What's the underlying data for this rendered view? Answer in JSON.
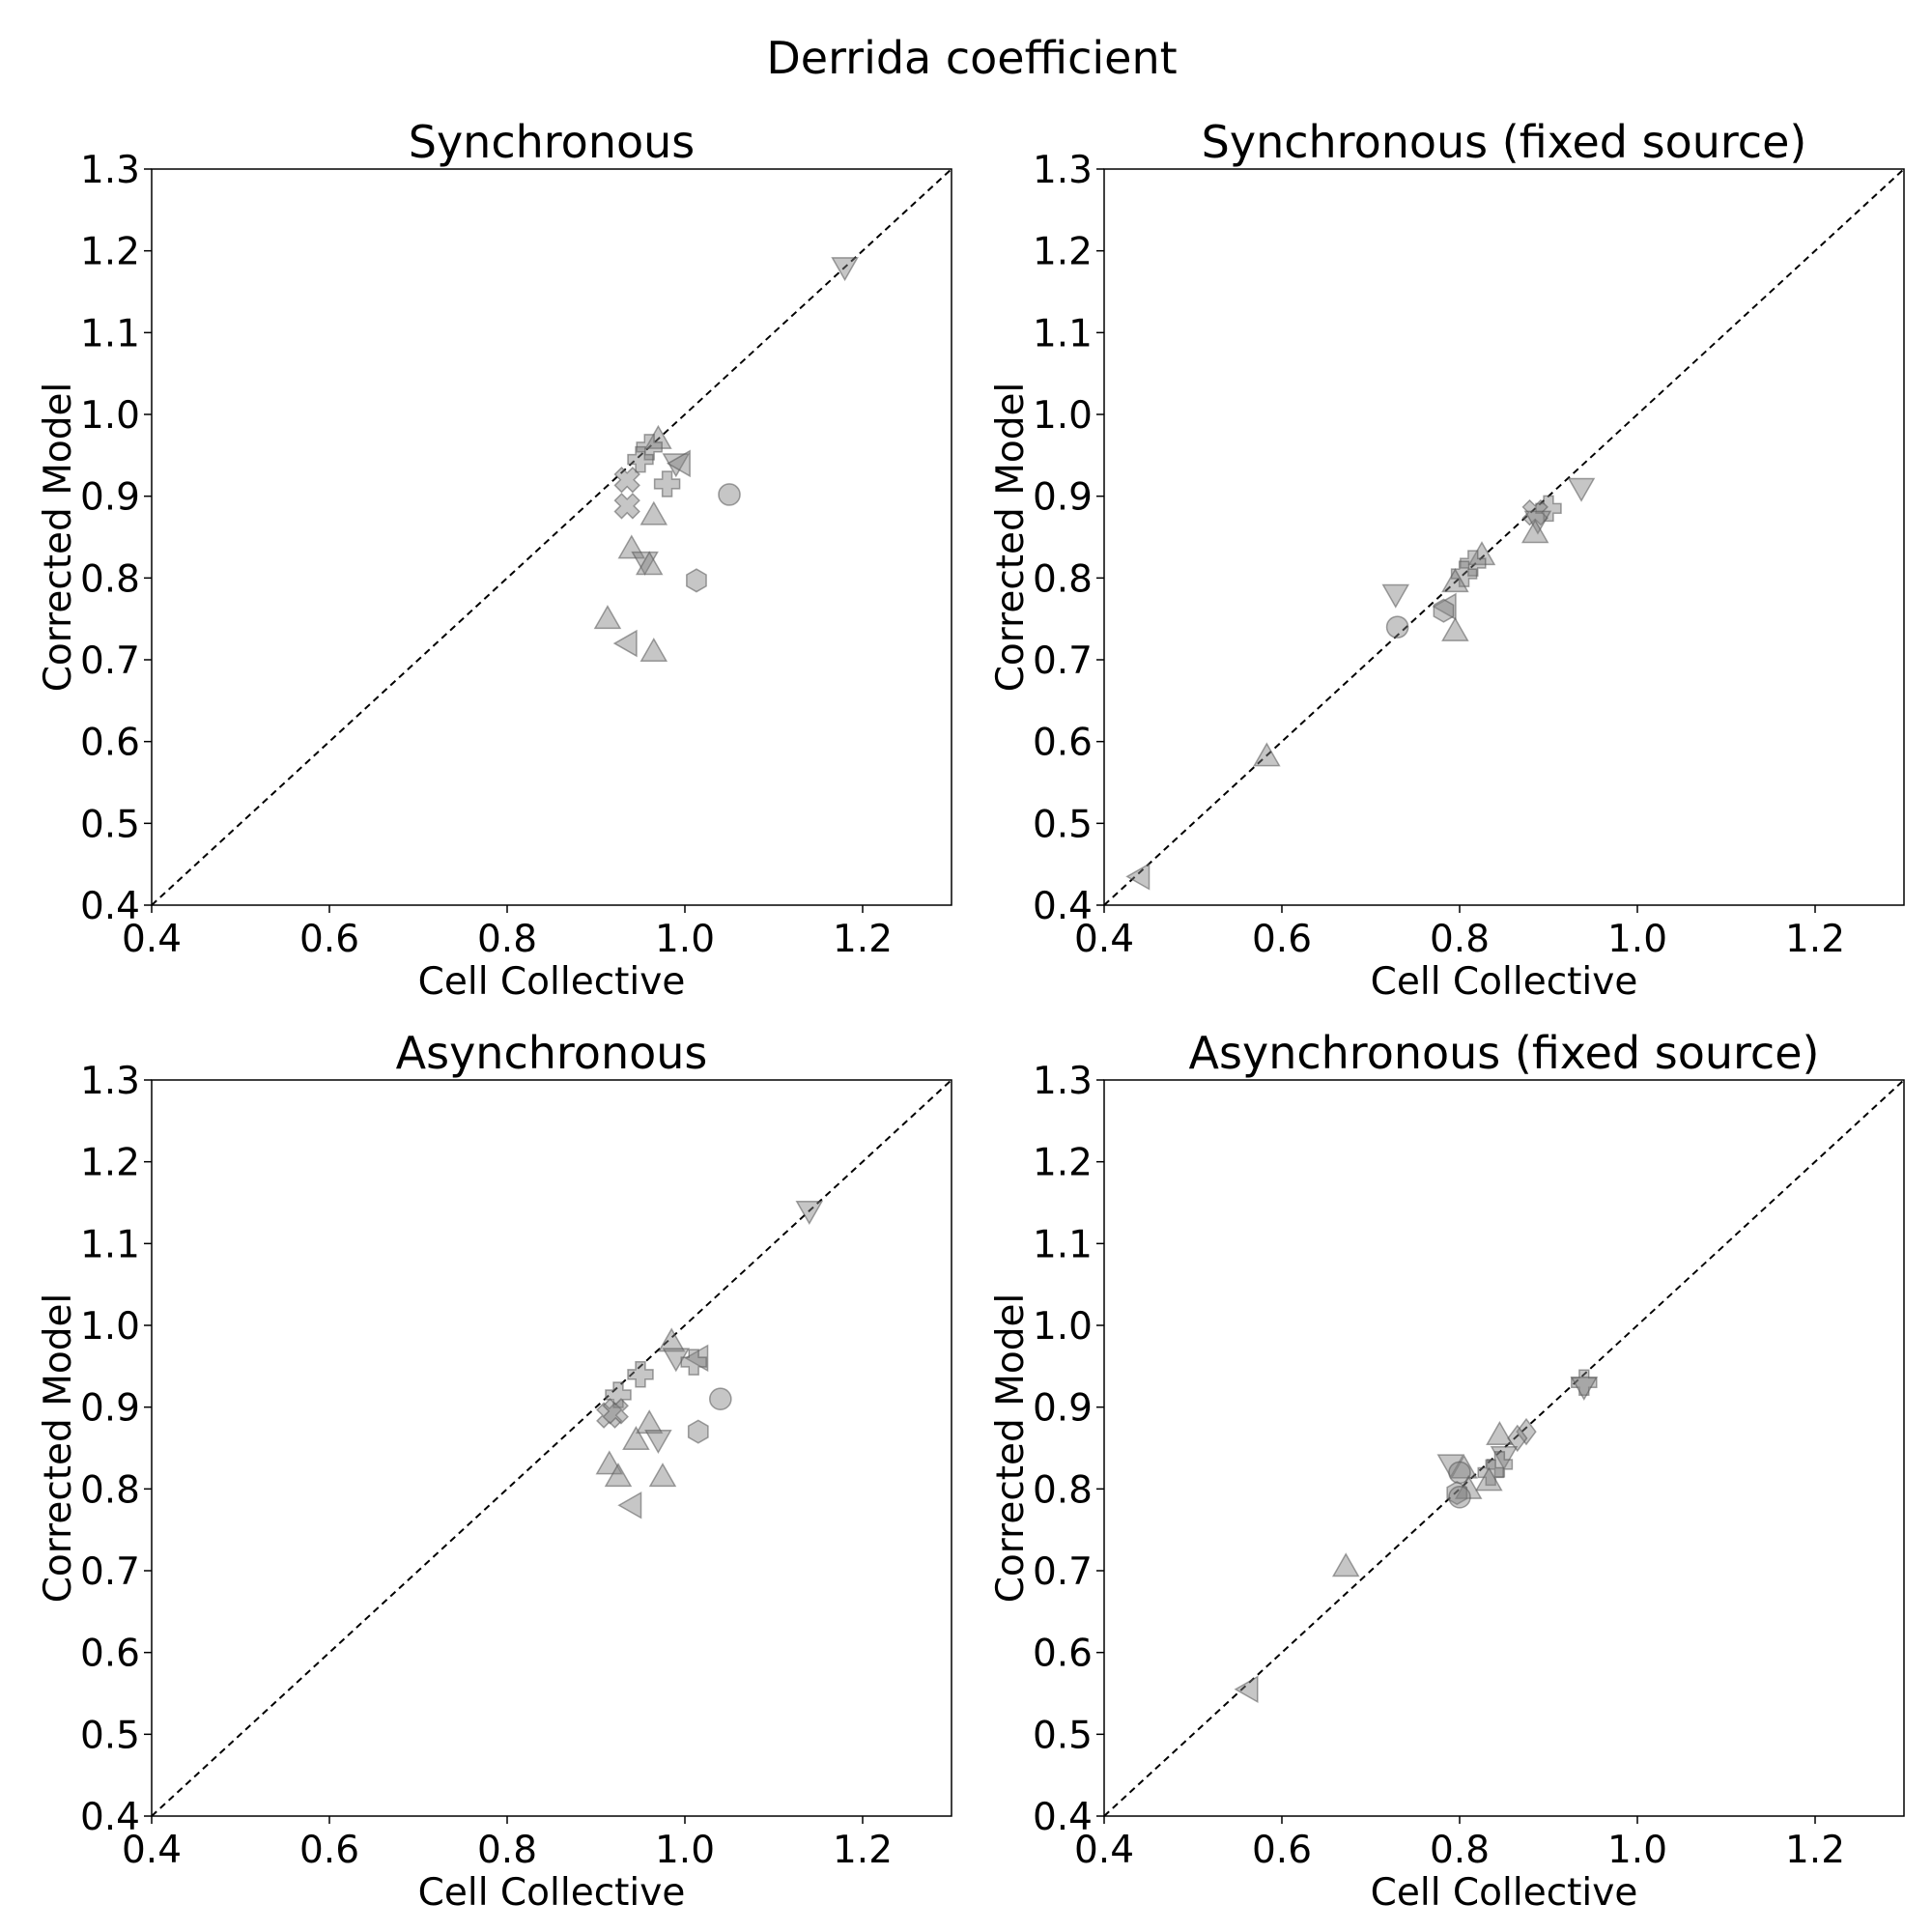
{
  "figure_title": "Derrida coefficient",
  "colors": {
    "marker": "#808080",
    "diagonal": "#000000",
    "frame": "#000000"
  },
  "chart_data": [
    {
      "type": "scatter",
      "title": "Synchronous",
      "xlabel": "Cell Collective",
      "ylabel": "Corrected Model",
      "xlim": [
        0.4,
        1.3
      ],
      "ylim": [
        0.4,
        1.3
      ],
      "xticks": [
        "0.4",
        "0.6",
        "0.8",
        "1.0",
        "1.2"
      ],
      "yticks": [
        "0.4",
        "0.5",
        "0.6",
        "0.7",
        "0.8",
        "0.9",
        "1.0",
        "1.1",
        "1.2",
        "1.3"
      ],
      "reference_line": "y = x (dashed)",
      "grid": false,
      "points": [
        {
          "x": 1.18,
          "y": 1.18,
          "marker": "triangle-down"
        },
        {
          "x": 0.97,
          "y": 0.97,
          "marker": "triangle-up"
        },
        {
          "x": 0.96,
          "y": 0.96,
          "marker": "plus"
        },
        {
          "x": 0.95,
          "y": 0.945,
          "marker": "plus"
        },
        {
          "x": 0.935,
          "y": 0.92,
          "marker": "x"
        },
        {
          "x": 0.99,
          "y": 0.94,
          "marker": "triangle-down"
        },
        {
          "x": 0.995,
          "y": 0.94,
          "marker": "triangle-left"
        },
        {
          "x": 0.98,
          "y": 0.915,
          "marker": "plus"
        },
        {
          "x": 1.05,
          "y": 0.902,
          "marker": "circle"
        },
        {
          "x": 0.935,
          "y": 0.888,
          "marker": "x"
        },
        {
          "x": 0.965,
          "y": 0.877,
          "marker": "triangle-up"
        },
        {
          "x": 0.94,
          "y": 0.836,
          "marker": "triangle-up"
        },
        {
          "x": 0.955,
          "y": 0.82,
          "marker": "triangle-down"
        },
        {
          "x": 0.96,
          "y": 0.816,
          "marker": "triangle-up"
        },
        {
          "x": 1.013,
          "y": 0.797,
          "marker": "hexagon"
        },
        {
          "x": 0.913,
          "y": 0.75,
          "marker": "triangle-up"
        },
        {
          "x": 0.935,
          "y": 0.72,
          "marker": "triangle-left"
        },
        {
          "x": 0.965,
          "y": 0.71,
          "marker": "triangle-up"
        }
      ]
    },
    {
      "type": "scatter",
      "title": "Synchronous (fixed source)",
      "xlabel": "Cell Collective",
      "ylabel": "Corrected Model",
      "xlim": [
        0.4,
        1.3
      ],
      "ylim": [
        0.4,
        1.3
      ],
      "xticks": [
        "0.4",
        "0.6",
        "0.8",
        "1.0",
        "1.2"
      ],
      "yticks": [
        "0.4",
        "0.5",
        "0.6",
        "0.7",
        "0.8",
        "0.9",
        "1.0",
        "1.1",
        "1.2",
        "1.3"
      ],
      "reference_line": "y = x (dashed)",
      "grid": false,
      "points": [
        {
          "x": 0.937,
          "y": 0.91,
          "marker": "triangle-down"
        },
        {
          "x": 0.9,
          "y": 0.885,
          "marker": "plus"
        },
        {
          "x": 0.885,
          "y": 0.88,
          "marker": "x"
        },
        {
          "x": 0.888,
          "y": 0.87,
          "marker": "triangle-down"
        },
        {
          "x": 0.885,
          "y": 0.855,
          "marker": "triangle-up"
        },
        {
          "x": 0.825,
          "y": 0.828,
          "marker": "triangle-up"
        },
        {
          "x": 0.815,
          "y": 0.818,
          "marker": "plus"
        },
        {
          "x": 0.805,
          "y": 0.805,
          "marker": "plus"
        },
        {
          "x": 0.795,
          "y": 0.795,
          "marker": "triangle-up"
        },
        {
          "x": 0.728,
          "y": 0.78,
          "marker": "triangle-down"
        },
        {
          "x": 0.785,
          "y": 0.765,
          "marker": "triangle-left"
        },
        {
          "x": 0.782,
          "y": 0.76,
          "marker": "hexagon"
        },
        {
          "x": 0.73,
          "y": 0.74,
          "marker": "circle"
        },
        {
          "x": 0.795,
          "y": 0.735,
          "marker": "triangle-up"
        },
        {
          "x": 0.583,
          "y": 0.582,
          "marker": "triangle-up"
        },
        {
          "x": 0.44,
          "y": 0.435,
          "marker": "triangle-left"
        }
      ]
    },
    {
      "type": "scatter",
      "title": "Asynchronous",
      "xlabel": "Cell Collective",
      "ylabel": "Corrected Model",
      "xlim": [
        0.4,
        1.3
      ],
      "ylim": [
        0.4,
        1.3
      ],
      "xticks": [
        "0.4",
        "0.6",
        "0.8",
        "1.0",
        "1.2"
      ],
      "yticks": [
        "0.4",
        "0.5",
        "0.6",
        "0.7",
        "0.8",
        "0.9",
        "1.0",
        "1.1",
        "1.2",
        "1.3"
      ],
      "reference_line": "y = x (dashed)",
      "grid": false,
      "points": [
        {
          "x": 1.14,
          "y": 1.14,
          "marker": "triangle-down"
        },
        {
          "x": 0.985,
          "y": 0.98,
          "marker": "triangle-up"
        },
        {
          "x": 0.99,
          "y": 0.96,
          "marker": "triangle-down"
        },
        {
          "x": 1.015,
          "y": 0.96,
          "marker": "triangle-left"
        },
        {
          "x": 1.01,
          "y": 0.955,
          "marker": "plus"
        },
        {
          "x": 0.95,
          "y": 0.94,
          "marker": "plus"
        },
        {
          "x": 0.925,
          "y": 0.915,
          "marker": "plus"
        },
        {
          "x": 0.915,
          "y": 0.89,
          "marker": "x"
        },
        {
          "x": 0.922,
          "y": 0.895,
          "marker": "x"
        },
        {
          "x": 1.04,
          "y": 0.91,
          "marker": "circle"
        },
        {
          "x": 0.96,
          "y": 0.88,
          "marker": "triangle-up"
        },
        {
          "x": 1.015,
          "y": 0.87,
          "marker": "hexagon"
        },
        {
          "x": 0.945,
          "y": 0.86,
          "marker": "triangle-up"
        },
        {
          "x": 0.97,
          "y": 0.86,
          "marker": "triangle-down"
        },
        {
          "x": 0.915,
          "y": 0.83,
          "marker": "triangle-up"
        },
        {
          "x": 0.925,
          "y": 0.815,
          "marker": "triangle-up"
        },
        {
          "x": 0.975,
          "y": 0.815,
          "marker": "triangle-up"
        },
        {
          "x": 0.94,
          "y": 0.78,
          "marker": "triangle-left"
        }
      ]
    },
    {
      "type": "scatter",
      "title": "Asynchronous (fixed source)",
      "xlabel": "Cell Collective",
      "ylabel": "Corrected Model",
      "xlim": [
        0.4,
        1.3
      ],
      "ylim": [
        0.4,
        1.3
      ],
      "xticks": [
        "0.4",
        "0.6",
        "0.8",
        "1.0",
        "1.2"
      ],
      "yticks": [
        "0.4",
        "0.5",
        "0.6",
        "0.7",
        "0.8",
        "0.9",
        "1.0",
        "1.1",
        "1.2",
        "1.3"
      ],
      "reference_line": "y = x (dashed)",
      "grid": false,
      "points": [
        {
          "x": 0.94,
          "y": 0.93,
          "marker": "plus"
        },
        {
          "x": 0.94,
          "y": 0.925,
          "marker": "triangle-down"
        },
        {
          "x": 0.875,
          "y": 0.87,
          "marker": "diamond"
        },
        {
          "x": 0.865,
          "y": 0.862,
          "marker": "diamond"
        },
        {
          "x": 0.845,
          "y": 0.866,
          "marker": "triangle-up"
        },
        {
          "x": 0.85,
          "y": 0.84,
          "marker": "triangle-down"
        },
        {
          "x": 0.845,
          "y": 0.83,
          "marker": "plus"
        },
        {
          "x": 0.835,
          "y": 0.82,
          "marker": "plus"
        },
        {
          "x": 0.833,
          "y": 0.81,
          "marker": "triangle-up"
        },
        {
          "x": 0.79,
          "y": 0.83,
          "marker": "triangle-down"
        },
        {
          "x": 0.805,
          "y": 0.825,
          "marker": "triangle-up"
        },
        {
          "x": 0.8,
          "y": 0.82,
          "marker": "circle"
        },
        {
          "x": 0.81,
          "y": 0.8,
          "marker": "triangle-up"
        },
        {
          "x": 0.797,
          "y": 0.795,
          "marker": "hexagon"
        },
        {
          "x": 0.8,
          "y": 0.79,
          "marker": "circle"
        },
        {
          "x": 0.672,
          "y": 0.705,
          "marker": "triangle-up"
        },
        {
          "x": 0.562,
          "y": 0.555,
          "marker": "triangle-left"
        }
      ]
    }
  ]
}
